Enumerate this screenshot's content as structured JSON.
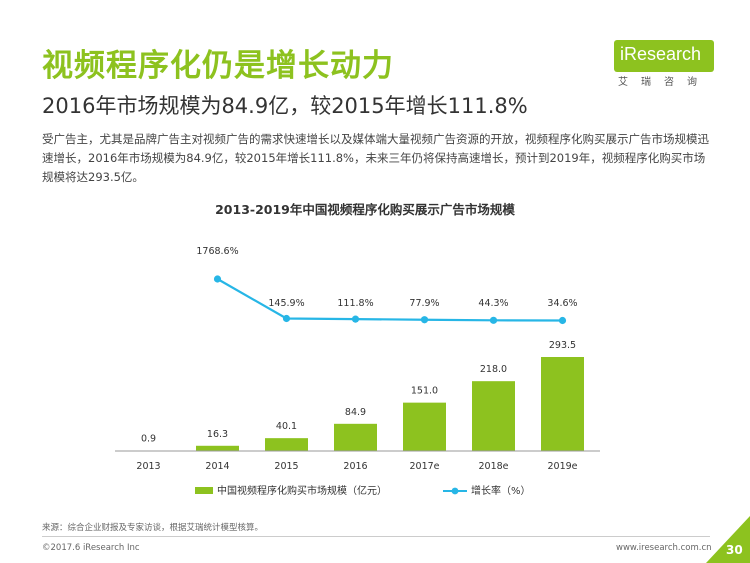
{
  "header": {
    "title": "视频程序化仍是增长动力",
    "subtitle": "2016年市场规模为84.9亿，较2015年增长111.8%",
    "description": "受广告主，尤其是品牌广告主对视频广告的需求快速增长以及媒体端大量视频广告资源的开放，视频程序化购买展示广告市场规模迅速增长，2016年市场规模为84.9亿，较2015年增长111.8%，未来三年仍将保持高速增长，预计到2019年，视频程序化购买市场规模将达293.5亿。"
  },
  "logo": {
    "name": "iResearch",
    "tagline": "艾瑞咨询"
  },
  "colors": {
    "accent": "#8dc21f",
    "line": "#27b6e6",
    "bar": "#8dc21f"
  },
  "chart_data": {
    "type": "bar",
    "title": "2013-2019年中国视频程序化购买展示广告市场规模",
    "categories": [
      "2013",
      "2014",
      "2015",
      "2016",
      "2017e",
      "2018e",
      "2019e"
    ],
    "series": [
      {
        "name": "中国视频程序化购买市场规模（亿元）",
        "type": "bar",
        "values": [
          0.9,
          16.3,
          40.1,
          84.9,
          151.0,
          218.0,
          293.5
        ],
        "labels": [
          "0.9",
          "16.3",
          "40.1",
          "84.9",
          "151.0",
          "218.0",
          "293.5"
        ]
      },
      {
        "name": "增长率（%）",
        "type": "line",
        "values": [
          null,
          1768.6,
          145.9,
          111.8,
          77.9,
          44.3,
          34.6
        ],
        "labels": [
          "",
          "1768.6%",
          "145.9%",
          "111.8%",
          "77.9%",
          "44.3%",
          "34.6%"
        ]
      }
    ],
    "legend": "bottom",
    "grid": false
  },
  "footer": {
    "source": "来源：综合企业财报及专家访谈，根据艾瑞统计模型核算。",
    "copyright": "©2017.6 iResearch Inc",
    "website": "www.iresearch.com.cn",
    "page": "30"
  }
}
